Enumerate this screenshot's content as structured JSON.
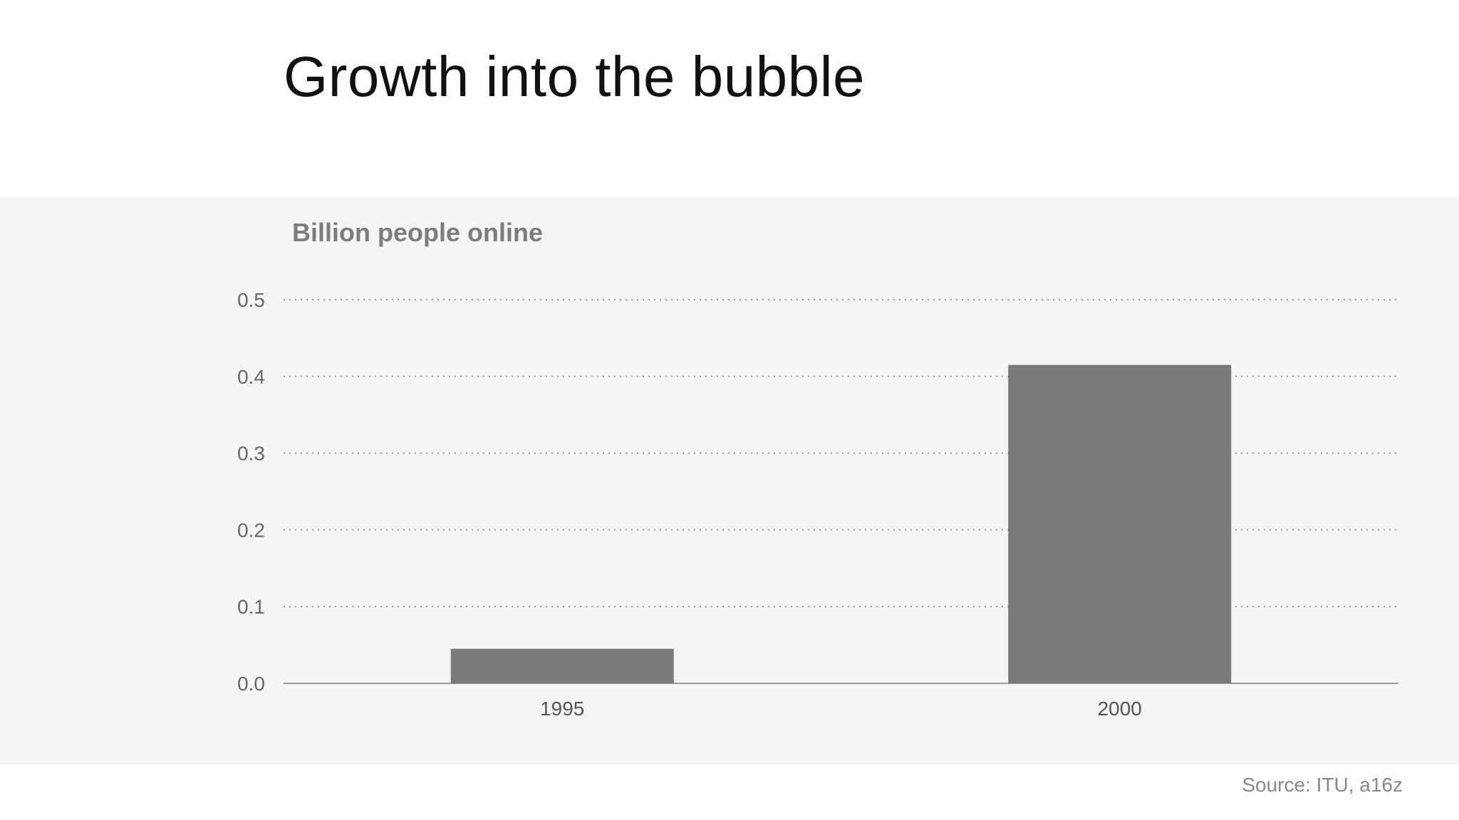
{
  "slide": {
    "title": "Growth into the bubble",
    "source": "Source: ITU, a16z"
  },
  "chart_data": {
    "type": "bar",
    "title": "",
    "ylabel": "Billion people online",
    "xlabel": "",
    "categories": [
      "1995",
      "2000"
    ],
    "values": [
      0.045,
      0.415
    ],
    "ylim": [
      0,
      0.5
    ],
    "yticks": [
      "0.0",
      "0.1",
      "0.2",
      "0.3",
      "0.4",
      "0.5"
    ],
    "grid": "dotted horizontal",
    "legend": "none",
    "colors": {
      "bar": "#7a7a7a",
      "grid": "#999999",
      "axis": "#999999",
      "tick_label": "#666666",
      "panel_bg": "#f5f5f5"
    }
  }
}
